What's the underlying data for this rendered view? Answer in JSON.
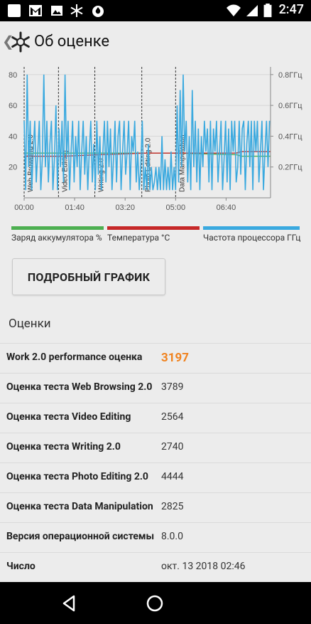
{
  "status_bar": {
    "time": "2:47",
    "left_icons": [
      "image-icon",
      "gmail-icon",
      "gallery-icon",
      "snowflake-icon",
      "fire-icon"
    ],
    "right_icons": [
      "wifi-icon",
      "signal-icon",
      "battery-icon"
    ]
  },
  "app_bar": {
    "title": "Об оценке"
  },
  "chart_data": {
    "type": "line",
    "xlabel": "",
    "ylabel": "",
    "x_ticks": [
      "00:00",
      "01:40",
      "03:20",
      "05:00",
      "06:40"
    ],
    "y_left_ticks": [
      20,
      40,
      60,
      80
    ],
    "y_right_ticks": [
      "0.2ГГц",
      "0.4ГГц",
      "0.6ГГц",
      "0.8ГГц"
    ],
    "ylim": [
      0,
      85
    ],
    "y_right_lim": [
      0,
      0.85
    ],
    "x_max_minutes": 488,
    "phase_markers": [
      {
        "label": "Web Browsing 2.0",
        "t": 0
      },
      {
        "label": "Video Editing",
        "t": 68
      },
      {
        "label": "Writing 2.0",
        "t": 140
      },
      {
        "label": "Photo Editing 2.0",
        "t": 233
      },
      {
        "label": "Data Manipulation",
        "t": 300
      }
    ],
    "series": [
      {
        "name": "Заряд аккумулятора %",
        "color": "#4caf50",
        "x": [
          0,
          60,
          140,
          300,
          420,
          430,
          488
        ],
        "y": [
          29,
          29,
          29,
          29,
          28,
          27,
          27
        ]
      },
      {
        "name": "Температура °C",
        "color": "#c62828",
        "x": [
          0,
          80,
          150,
          240,
          300,
          420,
          430,
          488
        ],
        "y": [
          27,
          27,
          28,
          29,
          29,
          29,
          30,
          30
        ]
      },
      {
        "name": "Частота процессора ГГц",
        "color": "#3aa9df",
        "x": [
          0,
          3,
          6,
          9,
          12,
          15,
          18,
          21,
          24,
          27,
          30,
          33,
          36,
          39,
          42,
          45,
          48,
          51,
          54,
          57,
          60,
          63,
          66,
          69,
          72,
          75,
          78,
          81,
          84,
          87,
          90,
          93,
          96,
          99,
          102,
          105,
          108,
          111,
          114,
          117,
          120,
          123,
          126,
          129,
          132,
          135,
          138,
          141,
          144,
          147,
          150,
          153,
          156,
          159,
          162,
          165,
          168,
          171,
          174,
          177,
          180,
          183,
          186,
          189,
          192,
          195,
          198,
          201,
          204,
          207,
          210,
          213,
          216,
          219,
          222,
          225,
          228,
          231,
          234,
          237,
          240,
          243,
          246,
          249,
          252,
          255,
          258,
          261,
          264,
          267,
          270,
          273,
          276,
          279,
          282,
          285,
          288,
          291,
          294,
          297,
          300,
          303,
          306,
          309,
          312,
          315,
          318,
          321,
          324,
          327,
          330,
          333,
          336,
          339,
          342,
          345,
          348,
          351,
          354,
          357,
          360,
          363,
          366,
          369,
          372,
          375,
          378,
          381,
          384,
          387,
          390,
          393,
          396,
          399,
          402,
          405,
          408,
          411,
          414,
          417,
          420,
          423,
          426,
          429,
          432,
          435,
          438,
          441,
          444,
          447,
          450,
          453,
          456,
          459,
          462,
          465,
          468,
          471,
          474,
          477,
          480,
          483,
          486
        ],
        "y": [
          0.5,
          0.05,
          0.8,
          0.2,
          0.5,
          0.05,
          0.3,
          0.5,
          0.1,
          0.3,
          0.5,
          0.05,
          0.25,
          0.8,
          0.2,
          0.5,
          0.1,
          0.35,
          0.5,
          0.05,
          0.25,
          0.6,
          0.05,
          0.45,
          0.2,
          0.5,
          0.1,
          0.8,
          0.25,
          0.5,
          0.05,
          0.3,
          0.5,
          0.1,
          0.4,
          0.2,
          0.5,
          0.05,
          0.3,
          0.5,
          0.15,
          0.4,
          0.05,
          0.3,
          0.5,
          0.1,
          0.35,
          0.05,
          0.5,
          0.15,
          0.4,
          0.05,
          0.3,
          0.5,
          0.1,
          0.5,
          0.2,
          0.45,
          0.05,
          0.25,
          0.5,
          0.1,
          0.4,
          0.5,
          0.05,
          0.3,
          0.5,
          0.15,
          0.3,
          0.5,
          0.05,
          0.4,
          0.3,
          0.5,
          0.1,
          0.3,
          0.05,
          0.2,
          0.5,
          0.05,
          0.2,
          0.05,
          0.35,
          0.05,
          0.2,
          0.05,
          0.1,
          0.2,
          0.05,
          0.2,
          0.05,
          0.4,
          0.05,
          0.25,
          0.05,
          0.2,
          0.05,
          0.3,
          0.05,
          0.2,
          0.05,
          0.6,
          0.1,
          0.7,
          0.2,
          0.8,
          0.3,
          0.5,
          0.1,
          0.4,
          0.05,
          0.7,
          0.2,
          0.5,
          0.1,
          0.45,
          0.05,
          0.4,
          0.2,
          0.5,
          0.3,
          0.45,
          0.1,
          0.5,
          0.05,
          0.45,
          0.3,
          0.5,
          0.1,
          0.3,
          0.5,
          0.05,
          0.25,
          0.5,
          0.1,
          0.45,
          0.05,
          0.5,
          0.3,
          0.5,
          0.1,
          0.2,
          0.5,
          0.15,
          0.45,
          0.5,
          0.05,
          0.35,
          0.5,
          0.2,
          0.5,
          0.05,
          0.5,
          0.3,
          0.5,
          0.1,
          0.3,
          0.5,
          0.05,
          0.3,
          0.5,
          0.2,
          0.5
        ]
      }
    ],
    "legend_position": "bottom",
    "grid": true
  },
  "legend": [
    {
      "label": "Заряд аккумулятора %",
      "color": "#4caf50"
    },
    {
      "label": "Температура °C",
      "color": "#c62828"
    },
    {
      "label": "Частота процессора ГГц",
      "color": "#3aa9df"
    }
  ],
  "detail_button": {
    "label": "ПОДРОБНЫЙ ГРАФИК"
  },
  "section_title": "Оценки",
  "scores": [
    {
      "label": "Work 2.0 performance оценка",
      "value": "3197",
      "highlight": true
    },
    {
      "label": "Оценка теста Web Browsing 2.0",
      "value": "3789"
    },
    {
      "label": "Оценка теста Video Editing",
      "value": "2564"
    },
    {
      "label": "Оценка теста Writing 2.0",
      "value": "2740"
    },
    {
      "label": "Оценка теста Photo Editing 2.0",
      "value": "4444"
    },
    {
      "label": "Оценка теста Data Manipulation",
      "value": "2825"
    },
    {
      "label": "Версия операционной системы",
      "value": "8.0.0"
    },
    {
      "label": "Число",
      "value": "окт. 13 2018 02:46"
    }
  ],
  "nav_bar": {
    "buttons": [
      "back-icon",
      "home-icon"
    ]
  }
}
